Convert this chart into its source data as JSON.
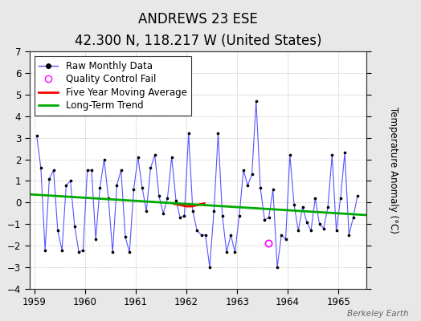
{
  "title": "ANDREWS 23 ESE",
  "subtitle": "42.300 N, 118.217 W (United States)",
  "ylabel": "Temperature Anomaly (°C)",
  "watermark": "Berkeley Earth",
  "bg_color": "#e8e8e8",
  "plot_bg_color": "#ffffff",
  "ylim": [
    -4,
    7
  ],
  "xlim": [
    1958.9,
    1965.55
  ],
  "yticks": [
    -4,
    -3,
    -2,
    -1,
    0,
    1,
    2,
    3,
    4,
    5,
    6,
    7
  ],
  "xticks": [
    1959,
    1960,
    1961,
    1962,
    1963,
    1964,
    1965
  ],
  "raw_x": [
    1959.042,
    1959.125,
    1959.208,
    1959.292,
    1959.375,
    1959.458,
    1959.542,
    1959.625,
    1959.708,
    1959.792,
    1959.875,
    1959.958,
    1960.042,
    1960.125,
    1960.208,
    1960.292,
    1960.375,
    1960.458,
    1960.542,
    1960.625,
    1960.708,
    1960.792,
    1960.875,
    1960.958,
    1961.042,
    1961.125,
    1961.208,
    1961.292,
    1961.375,
    1961.458,
    1961.542,
    1961.625,
    1961.708,
    1961.792,
    1961.875,
    1961.958,
    1962.042,
    1962.125,
    1962.208,
    1962.292,
    1962.375,
    1962.458,
    1962.542,
    1962.625,
    1962.708,
    1962.792,
    1962.875,
    1962.958,
    1963.042,
    1963.125,
    1963.208,
    1963.292,
    1963.375,
    1963.458,
    1963.542,
    1963.625,
    1963.708,
    1963.792,
    1963.875,
    1963.958,
    1964.042,
    1964.125,
    1964.208,
    1964.292,
    1964.375,
    1964.458,
    1964.542,
    1964.625,
    1964.708,
    1964.792,
    1964.875,
    1964.958,
    1965.042,
    1965.125,
    1965.208,
    1965.292,
    1965.375
  ],
  "raw_y": [
    3.1,
    1.6,
    -2.2,
    1.1,
    1.5,
    -1.3,
    -2.2,
    0.8,
    1.0,
    -1.1,
    -2.3,
    -2.2,
    1.5,
    1.5,
    -1.7,
    0.7,
    2.0,
    0.2,
    -2.3,
    0.8,
    1.5,
    -1.6,
    -2.3,
    0.6,
    2.1,
    0.7,
    -0.4,
    1.6,
    2.2,
    0.3,
    -0.5,
    0.2,
    2.1,
    0.1,
    -0.7,
    -0.6,
    3.2,
    -0.4,
    -1.3,
    -1.5,
    -1.5,
    -3.0,
    -0.4,
    3.2,
    -0.6,
    -2.3,
    -1.5,
    -2.3,
    -0.6,
    1.5,
    0.8,
    1.3,
    4.7,
    0.7,
    -0.8,
    -0.7,
    0.6,
    -3.0,
    -1.5,
    -1.7,
    2.2,
    -0.1,
    -1.3,
    -0.2,
    -0.9,
    -1.3,
    0.2,
    -1.0,
    -1.2,
    -0.2,
    2.2,
    -1.3,
    0.2,
    2.3,
    -1.5,
    -0.7,
    0.3
  ],
  "qc_fail_x": [
    1963.625
  ],
  "qc_fail_y": [
    -1.9
  ],
  "moving_avg_x": [
    1961.75,
    1961.9,
    1962.0,
    1962.1,
    1962.2,
    1962.35
  ],
  "moving_avg_y": [
    -0.05,
    -0.12,
    -0.17,
    -0.17,
    -0.12,
    -0.05
  ],
  "trend_x": [
    1958.9,
    1965.55
  ],
  "trend_y": [
    0.38,
    -0.58
  ],
  "line_color": "#5555ff",
  "dot_color": "#000000",
  "moving_avg_color": "#ff0000",
  "trend_color": "#00aa00",
  "qc_color": "#ff00ff",
  "title_fontsize": 12,
  "subtitle_fontsize": 9.5,
  "legend_fontsize": 8.5,
  "tick_fontsize": 8.5,
  "ylabel_fontsize": 8.5
}
